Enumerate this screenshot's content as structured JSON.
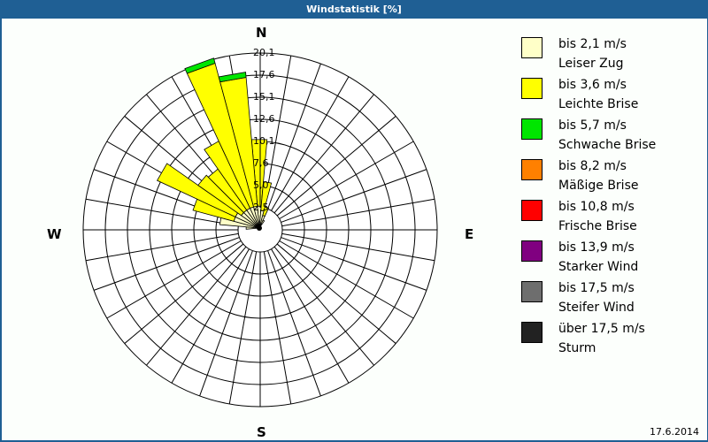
{
  "title": "Windstatistik [%]",
  "date": "17.6.2014",
  "compass": {
    "N": "N",
    "E": "E",
    "S": "S",
    "W": "W"
  },
  "chart_data": {
    "type": "polar-stacked-bar",
    "title": "Windstatistik [%]",
    "unit": "%",
    "sectors": 36,
    "sector_width_deg": 10,
    "radial_ticks": [
      "2,5",
      "5,0",
      "7,6",
      "10,1",
      "12,6",
      "15,1",
      "17,6",
      "20,1"
    ],
    "radial_max": 20.1,
    "series": [
      {
        "name": "bis 2,1 m/s Leiser Zug",
        "color": "#ffffc8"
      },
      {
        "name": "bis 3,6 m/s Leichte Brise",
        "color": "#ffff00"
      },
      {
        "name": "bis 5,7 m/s Schwache Brise",
        "color": "#00e600"
      },
      {
        "name": "bis 8,2 m/s Mäßige Brise",
        "color": "#ff8000"
      },
      {
        "name": "bis 10,8 m/s Frische Brise",
        "color": "#ff0000"
      },
      {
        "name": "bis 13,9 m/s Starker Wind",
        "color": "#800080"
      },
      {
        "name": "bis 17,5 m/s Steifer Wind",
        "color": "#6e6e6e"
      },
      {
        "name": "über 17,5 m/s Sturm",
        "color": "#222222"
      }
    ],
    "directions": [
      {
        "deg": 0,
        "values": [
          2.5,
          7.6,
          0
        ]
      },
      {
        "deg": 10,
        "values": [
          2.0,
          3.3,
          0
        ]
      },
      {
        "deg": 20,
        "values": [
          1.5,
          1.0,
          0
        ]
      },
      {
        "deg": 30,
        "values": [
          1.0,
          0,
          0
        ]
      },
      {
        "deg": 270,
        "values": [
          1.5,
          0,
          0
        ]
      },
      {
        "deg": 280,
        "values": [
          4.5,
          0,
          0
        ]
      },
      {
        "deg": 290,
        "values": [
          3.0,
          4.8,
          0
        ]
      },
      {
        "deg": 300,
        "values": [
          3.0,
          9.8,
          0
        ]
      },
      {
        "deg": 310,
        "values": [
          2.5,
          6.0,
          0
        ]
      },
      {
        "deg": 320,
        "values": [
          2.5,
          5.7,
          0
        ]
      },
      {
        "deg": 330,
        "values": [
          2.5,
          8.4,
          0
        ]
      },
      {
        "deg": 340,
        "values": [
          2.5,
          16.9,
          0.6
        ]
      },
      {
        "deg": 350,
        "values": [
          2.5,
          14.7,
          0.6
        ]
      }
    ]
  },
  "legend": [
    {
      "line1": "bis 2,1 m/s",
      "line2": "Leiser Zug",
      "color": "#ffffc8"
    },
    {
      "line1": "bis 3,6 m/s",
      "line2": "Leichte Brise",
      "color": "#ffff00"
    },
    {
      "line1": "bis 5,7 m/s",
      "line2": "Schwache Brise",
      "color": "#00e600"
    },
    {
      "line1": "bis 8,2 m/s",
      "line2": "Mäßige Brise",
      "color": "#ff8000"
    },
    {
      "line1": "bis 10,8 m/s",
      "line2": "Frische Brise",
      "color": "#ff0000"
    },
    {
      "line1": "bis 13,9 m/s",
      "line2": "Starker Wind",
      "color": "#800080"
    },
    {
      "line1": "bis 17,5 m/s",
      "line2": "Steifer Wind",
      "color": "#6e6e6e"
    },
    {
      "line1": "über 17,5 m/s",
      "line2": "Sturm",
      "color": "#222222"
    }
  ]
}
